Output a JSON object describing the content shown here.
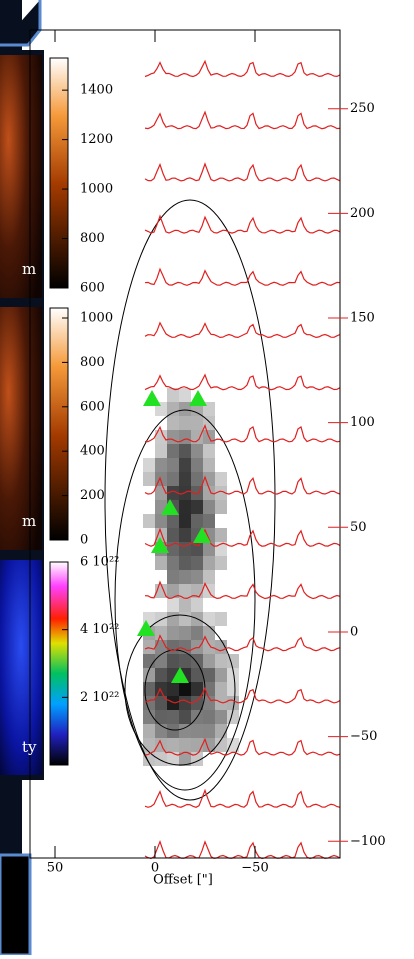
{
  "image_panels": [
    {
      "label": "m",
      "colorbar": {
        "lim": [
          600,
          1530
        ],
        "ticks": [
          600,
          800,
          1000,
          1200,
          1400
        ]
      }
    },
    {
      "label": "m",
      "colorbar": {
        "lim": [
          0,
          1045
        ],
        "ticks": [
          0,
          200,
          400,
          600,
          800,
          1000
        ]
      }
    },
    {
      "label": "ty",
      "colorbar": {
        "lim": [
          0,
          6e+22
        ],
        "ticks": [
          {
            "value": 2e+22,
            "label": "2 10²²"
          },
          {
            "value": 4e+22,
            "label": "4 10²²"
          },
          {
            "value": 6e+22,
            "label": "6 10²²"
          }
        ]
      }
    }
  ],
  "chart_data": {
    "type": "map",
    "xlabel": "Offset [\"]",
    "xlim": [
      62.5,
      -92.5
    ],
    "xticks": [
      50,
      0,
      {
        "value": -50,
        "label": "−50"
      }
    ],
    "ylim": [
      -108,
      287.6
    ],
    "yticks": [
      250,
      200,
      150,
      100,
      50,
      0,
      {
        "value": -50,
        "label": "−50"
      },
      {
        "value": -100,
        "label": "−100"
      }
    ]
  }
}
